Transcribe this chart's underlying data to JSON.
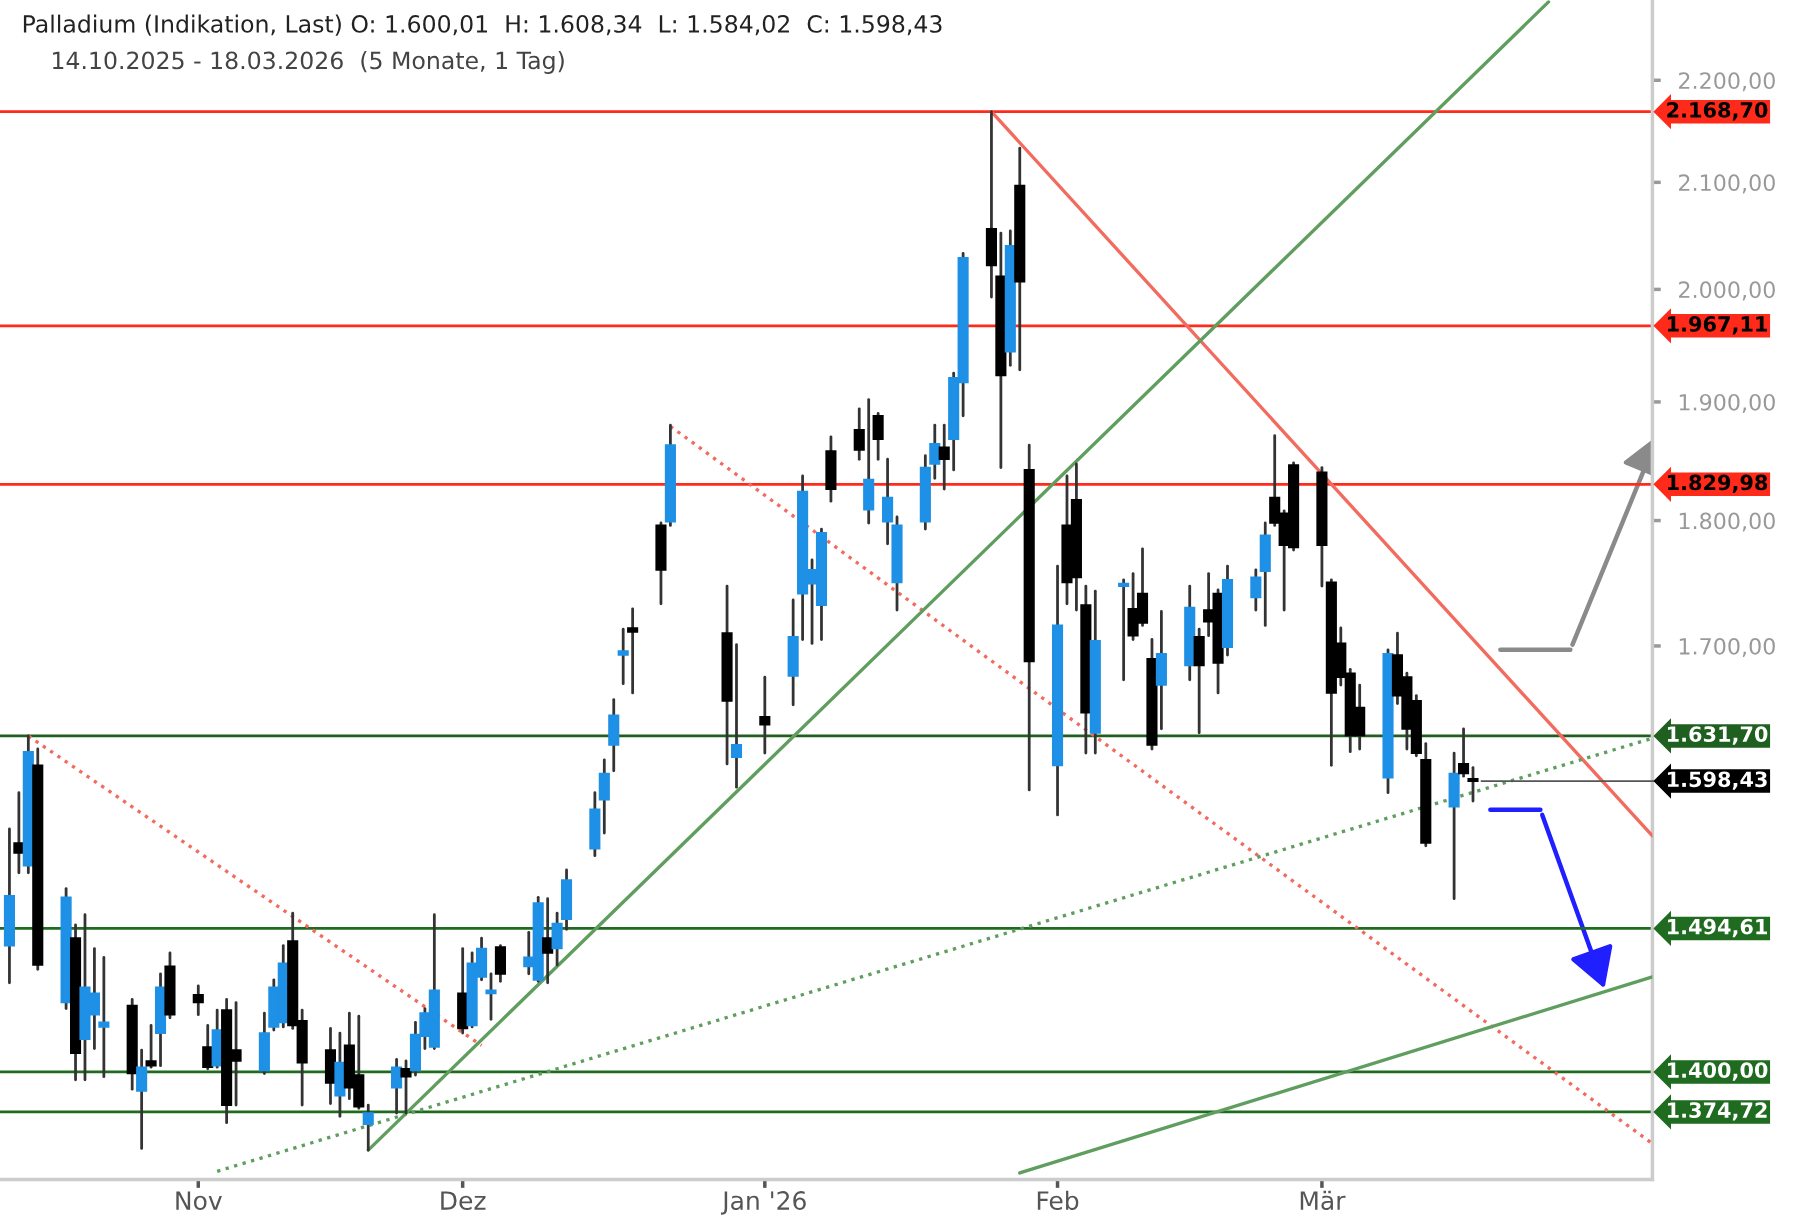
{
  "chart_data": {
    "type": "candlestick",
    "title": "Palladium (Indikation, Last) O: 1.600,01  H: 1.608,34  L: 1.584,02  C: 1.598,43",
    "subtitle": "14.10.2025 - 18.03.2026  (5 Monate, 1 Tag)",
    "x": [
      "2025-10-14",
      "2025-10-15",
      "2025-10-16",
      "2025-10-17",
      "2025-10-20",
      "2025-10-21",
      "2025-10-22",
      "2025-10-23",
      "2025-10-24",
      "2025-10-27",
      "2025-10-28",
      "2025-10-29",
      "2025-10-30",
      "2025-10-31",
      "2025-11-03",
      "2025-11-04",
      "2025-11-05",
      "2025-11-06",
      "2025-11-07",
      "2025-11-10",
      "2025-11-11",
      "2025-11-12",
      "2025-11-13",
      "2025-11-14",
      "2025-11-17",
      "2025-11-18",
      "2025-11-19",
      "2025-11-20",
      "2025-11-21",
      "2025-11-24",
      "2025-11-25",
      "2025-11-26",
      "2025-11-27",
      "2025-11-28",
      "2025-12-01",
      "2025-12-02",
      "2025-12-03",
      "2025-12-04",
      "2025-12-05",
      "2025-12-08",
      "2025-12-09",
      "2025-12-10",
      "2025-12-11",
      "2025-12-12",
      "2025-12-15",
      "2025-12-16",
      "2025-12-17",
      "2025-12-18",
      "2025-12-19",
      "2025-12-22",
      "2025-12-23",
      "2025-12-29",
      "2025-12-30",
      "2026-01-02",
      "2026-01-05",
      "2026-01-06",
      "2026-01-07",
      "2026-01-08",
      "2026-01-09",
      "2026-01-12",
      "2026-01-13",
      "2026-01-14",
      "2026-01-15",
      "2026-01-16",
      "2026-01-19",
      "2026-01-20",
      "2026-01-21",
      "2026-01-22",
      "2026-01-23",
      "2026-01-26",
      "2026-01-27",
      "2026-01-28",
      "2026-01-29",
      "2026-01-30",
      "2026-02-02",
      "2026-02-03",
      "2026-02-04",
      "2026-02-05",
      "2026-02-06",
      "2026-02-09",
      "2026-02-10",
      "2026-02-11",
      "2026-02-12",
      "2026-02-13",
      "2026-02-16",
      "2026-02-17",
      "2026-02-18",
      "2026-02-19",
      "2026-02-20",
      "2026-02-23",
      "2026-02-24",
      "2026-02-25",
      "2026-02-26",
      "2026-02-27",
      "2026-03-02",
      "2026-03-03",
      "2026-03-04",
      "2026-03-05",
      "2026-03-06",
      "2026-03-09",
      "2026-03-10",
      "2026-03-11",
      "2026-03-12",
      "2026-03-13",
      "2026-03-16",
      "2026-03-17",
      "2026-03-18"
    ],
    "ohlc": [
      [
        1483,
        1564,
        1458,
        1517
      ],
      [
        1554,
        1590,
        1533,
        1547
      ],
      [
        1538,
        1631.7,
        1533,
        1620
      ],
      [
        1610,
        1622,
        1467,
        1470
      ],
      [
        1445,
        1522,
        1441,
        1516
      ],
      [
        1488,
        1497,
        1395,
        1412
      ],
      [
        1421,
        1504,
        1395,
        1455
      ],
      [
        1437,
        1481,
        1415,
        1451
      ],
      [
        1429,
        1475,
        1397,
        1432
      ],
      [
        1443,
        1447,
        1389,
        1399
      ],
      [
        1388,
        1414,
        1352,
        1403
      ],
      [
        1407,
        1430,
        1403,
        1404
      ],
      [
        1425,
        1464,
        1404,
        1455
      ],
      [
        1469,
        1478,
        1435,
        1437
      ],
      [
        1450,
        1456,
        1437,
        1445
      ],
      [
        1416,
        1430,
        1402,
        1403
      ],
      [
        1404,
        1440,
        1403,
        1427
      ],
      [
        1440,
        1447,
        1368,
        1379
      ],
      [
        1414,
        1445,
        1379,
        1407
      ],
      [
        1401,
        1438,
        1399,
        1425
      ],
      [
        1429,
        1460,
        1427,
        1455
      ],
      [
        1432,
        1483,
        1429,
        1471
      ],
      [
        1486,
        1505,
        1428,
        1430
      ],
      [
        1433,
        1440,
        1379,
        1406
      ],
      [
        1414,
        1428,
        1380,
        1393
      ],
      [
        1385,
        1425,
        1372,
        1406
      ],
      [
        1417,
        1438,
        1383,
        1390
      ],
      [
        1398,
        1436,
        1377,
        1378
      ],
      [
        1367,
        1379,
        1351,
        1374
      ],
      [
        1390,
        1408,
        1374,
        1403
      ],
      [
        1402,
        1407,
        1374,
        1397
      ],
      [
        1401,
        1432,
        1398,
        1424
      ],
      [
        1423,
        1441,
        1415,
        1438
      ],
      [
        1416,
        1504,
        1415,
        1453
      ],
      [
        1451,
        1481,
        1425,
        1428
      ],
      [
        1430,
        1478,
        1429,
        1471
      ],
      [
        1462,
        1488,
        1460,
        1481
      ],
      [
        1451,
        1464,
        1434,
        1453
      ],
      [
        1482,
        1483,
        1459,
        1464
      ],
      [
        1469,
        1492,
        1464,
        1475
      ],
      [
        1460,
        1516,
        1459,
        1512
      ],
      [
        1488,
        1515,
        1458,
        1478
      ],
      [
        1481,
        1505,
        1470,
        1498
      ],
      [
        1501,
        1535,
        1494,
        1528
      ],
      [
        1550,
        1590,
        1545,
        1578
      ],
      [
        1585,
        1614,
        1561,
        1604
      ],
      [
        1625,
        1659,
        1606,
        1647
      ],
      [
        1693,
        1713,
        1671,
        1696
      ],
      [
        1714,
        1729,
        1664,
        1711
      ],
      [
        1796,
        1798,
        1733,
        1760
      ],
      [
        1799,
        1880,
        1796,
        1863
      ],
      [
        1710,
        1747,
        1611,
        1658
      ],
      [
        1616,
        1701,
        1594,
        1625
      ],
      [
        1646,
        1676,
        1619,
        1640
      ],
      [
        1677,
        1736,
        1655,
        1707
      ],
      [
        1741,
        1837,
        1705,
        1824
      ],
      [
        1749,
        1768,
        1702,
        1760
      ],
      [
        1732,
        1793,
        1705,
        1790
      ],
      [
        1858,
        1870,
        1816,
        1826
      ],
      [
        1876,
        1894,
        1851,
        1859
      ],
      [
        1809,
        1902,
        1798,
        1834
      ],
      [
        1888,
        1890,
        1851,
        1868
      ],
      [
        1799,
        1851,
        1781,
        1819
      ],
      [
        1750,
        1803,
        1728,
        1796
      ],
      [
        1799,
        1854,
        1793,
        1844
      ],
      [
        1847,
        1880,
        1835,
        1864
      ],
      [
        1861,
        1880,
        1826,
        1851
      ],
      [
        1868,
        1925,
        1842,
        1921
      ],
      [
        1917,
        2033,
        1888,
        2029
      ],
      [
        2056,
        2168.7,
        1993,
        2022
      ],
      [
        2012,
        2052,
        1844,
        1923
      ],
      [
        1944,
        2054,
        1932,
        2040
      ],
      [
        2097,
        2133,
        1928,
        2007
      ],
      [
        1842,
        1863,
        1592,
        1688
      ],
      [
        1610,
        1763,
        1574,
        1716
      ],
      [
        1796,
        1837,
        1733,
        1750
      ],
      [
        1817,
        1847,
        1728,
        1754
      ],
      [
        1732,
        1747,
        1619,
        1649
      ],
      [
        1634,
        1743,
        1619,
        1704
      ],
      [
        1747,
        1752,
        1674,
        1749
      ],
      [
        1729,
        1757,
        1705,
        1708
      ],
      [
        1741,
        1777,
        1716,
        1718
      ],
      [
        1690,
        1705,
        1622,
        1625
      ],
      [
        1670,
        1727,
        1637,
        1694
      ],
      [
        1685,
        1747,
        1674,
        1730
      ],
      [
        1707,
        1713,
        1634,
        1685
      ],
      [
        1728,
        1757,
        1708,
        1719
      ],
      [
        1741,
        1744,
        1664,
        1687
      ],
      [
        1699,
        1763,
        1693,
        1752
      ],
      [
        1738,
        1760,
        1728,
        1754
      ],
      [
        1759,
        1798,
        1716,
        1788
      ],
      [
        1819,
        1871,
        1796,
        1798
      ],
      [
        1806,
        1808,
        1728,
        1780
      ],
      [
        1846,
        1848,
        1776,
        1778
      ],
      [
        1840,
        1844,
        1747,
        1780
      ],
      [
        1750,
        1752,
        1610,
        1664
      ],
      [
        1702,
        1714,
        1670,
        1676
      ],
      [
        1679,
        1682,
        1620,
        1632
      ],
      [
        1653,
        1670,
        1622,
        1632
      ],
      [
        1601,
        1697,
        1590,
        1694
      ],
      [
        1693,
        1710,
        1656,
        1662
      ],
      [
        1676,
        1679,
        1622,
        1637
      ],
      [
        1658,
        1662,
        1617,
        1619
      ],
      [
        1614,
        1626,
        1552,
        1554
      ],
      [
        1580,
        1619,
        1515,
        1604
      ],
      [
        1611,
        1637,
        1602,
        1604
      ],
      [
        1600.01,
        1608.34,
        1584.02,
        1598.43
      ]
    ],
    "colors": [
      "#1e90e6",
      "#000000",
      "#1e90e6",
      "#000000",
      "#1e90e6",
      "#000000",
      "#1e90e6",
      "#1e90e6",
      "#1e90e6",
      "#000000",
      "#1e90e6",
      "#000000",
      "#1e90e6",
      "#000000",
      "#000000",
      "#000000",
      "#1e90e6",
      "#000000",
      "#000000",
      "#1e90e6",
      "#1e90e6",
      "#1e90e6",
      "#000000",
      "#000000",
      "#000000",
      "#1e90e6",
      "#000000",
      "#000000",
      "#1e90e6",
      "#1e90e6",
      "#000000",
      "#1e90e6",
      "#1e90e6",
      "#1e90e6",
      "#000000",
      "#1e90e6",
      "#1e90e6",
      "#1e90e6",
      "#000000",
      "#1e90e6",
      "#1e90e6",
      "#000000",
      "#1e90e6",
      "#1e90e6",
      "#1e90e6",
      "#1e90e6",
      "#1e90e6",
      "#1e90e6",
      "#000000",
      "#000000",
      "#1e90e6",
      "#000000",
      "#1e90e6",
      "#000000",
      "#1e90e6",
      "#1e90e6",
      "#1e90e6",
      "#1e90e6",
      "#000000",
      "#000000",
      "#1e90e6",
      "#000000",
      "#1e90e6",
      "#1e90e6",
      "#1e90e6",
      "#1e90e6",
      "#000000",
      "#1e90e6",
      "#1e90e6",
      "#000000",
      "#000000",
      "#1e90e6",
      "#000000",
      "#000000",
      "#1e90e6",
      "#000000",
      "#000000",
      "#000000",
      "#1e90e6",
      "#1e90e6",
      "#000000",
      "#000000",
      "#000000",
      "#1e90e6",
      "#1e90e6",
      "#000000",
      "#000000",
      "#000000",
      "#1e90e6",
      "#1e90e6",
      "#1e90e6",
      "#000000",
      "#000000",
      "#000000",
      "#000000",
      "#000000",
      "#000000",
      "#000000",
      "#000000",
      "#1e90e6",
      "#000000",
      "#000000",
      "#000000",
      "#000000",
      "#1e90e6",
      "#000000",
      "#000000"
    ],
    "series": [
      {
        "type": "line",
        "color": "#f26b5e",
        "line_style": "dotted",
        "x": [
          "2025-10-16",
          "2025-12-03"
        ],
        "values": [
          1631.7,
          1417
        ]
      },
      {
        "type": "line",
        "color": "#f26b5e",
        "line_style": "dotted",
        "x": [
          "2025-12-23",
          "2026-04-06"
        ],
        "values": [
          1879,
          1355
        ]
      },
      {
        "type": "line",
        "color": "#f26b5e",
        "line_style": "solid",
        "x": [
          "2026-01-26",
          "2026-04-06"
        ],
        "values": [
          2168.7,
          1559
        ]
      },
      {
        "type": "line",
        "color": "#5f9e5f",
        "line_style": "solid",
        "x": [
          "2025-11-21",
          "2026-03-26"
        ],
        "values": [
          1351,
          2280
        ]
      },
      {
        "type": "line",
        "color": "#5f9e5f",
        "line_style": "dotted",
        "x": [
          "2025-11-05",
          "2026-04-06"
        ],
        "values": [
          1338,
          1630
        ]
      },
      {
        "type": "line",
        "color": "#5f9e5f",
        "line_style": "solid",
        "x": [
          "2026-01-29",
          "2026-04-06"
        ],
        "values": [
          1337,
          1462
        ]
      }
    ],
    "ref_lines": [
      {
        "axis": "y",
        "value": 2168.7,
        "label": "2.168,70",
        "color": "#ff2a1a"
      },
      {
        "axis": "y",
        "value": 1967.11,
        "label": "1.967,11",
        "color": "#ff2a1a"
      },
      {
        "axis": "y",
        "value": 1829.98,
        "label": "1.829,98",
        "color": "#ff2a1a"
      },
      {
        "axis": "y",
        "value": 1631.7,
        "label": "1.631,70",
        "color": "#1f5f1f"
      },
      {
        "axis": "y",
        "value": 1494.61,
        "label": "1.494,61",
        "color": "#1f6b1f"
      },
      {
        "axis": "y",
        "value": 1400,
        "label": "1.400,00",
        "color": "#1f6b1f"
      },
      {
        "axis": "y",
        "value": 1374.72,
        "label": "1.374,72",
        "color": "#1f6b1f"
      }
    ],
    "log": true,
    "annotations": [
      {
        "text": "1.598,43",
        "x": "2026-03-18",
        "y": 1598.43
      }
    ],
    "xlim": [
      "2025-10-13",
      "2026-04-06"
    ],
    "xticks": [
      {
        "value": "2025-11-03",
        "label": "Nov"
      },
      {
        "value": "2025-12-01",
        "label": "Dez"
      },
      {
        "value": "2026-01-02",
        "label": "Jan '26"
      },
      {
        "value": "2026-02-02",
        "label": "Feb"
      },
      {
        "value": "2026-03-02",
        "label": "Mär"
      }
    ],
    "ylim": [
      1333,
      2282
    ],
    "yticks": [
      {
        "value": 1700,
        "label": "1.700,00"
      },
      {
        "value": 1800,
        "label": "1.800,00"
      },
      {
        "value": 1900,
        "label": "1.900,00"
      },
      {
        "value": 2000,
        "label": "2.000,00"
      },
      {
        "value": 2100,
        "label": "2.100,00"
      },
      {
        "value": 2200,
        "label": "2.200,00"
      }
    ],
    "grid": false
  }
}
